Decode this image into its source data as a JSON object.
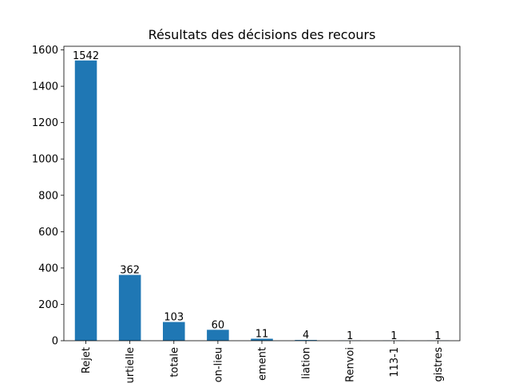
{
  "chart_data": {
    "type": "bar",
    "title": "Résultats des décisions des recours",
    "xlabel": "",
    "ylabel": "",
    "categories": [
      "Rejet",
      "urtielle",
      "totale",
      "on-lieu",
      "ement",
      "liation",
      "Renvoi",
      "113-1",
      "gistres"
    ],
    "values": [
      1542,
      362,
      103,
      60,
      11,
      4,
      1,
      1,
      1
    ],
    "data_labels": [
      "1542",
      "362",
      "103",
      "60",
      "11",
      "4",
      "1",
      "1",
      "1"
    ],
    "ylim": [
      0,
      1620
    ],
    "yticks": [
      0,
      200,
      400,
      600,
      800,
      1000,
      1200,
      1400,
      1600
    ],
    "ytick_labels": [
      "0",
      "200",
      "400",
      "600",
      "800",
      "1000",
      "1200",
      "1400",
      "1600"
    ],
    "bar_color": "#1f77b4",
    "grid": false,
    "legend": "none"
  }
}
